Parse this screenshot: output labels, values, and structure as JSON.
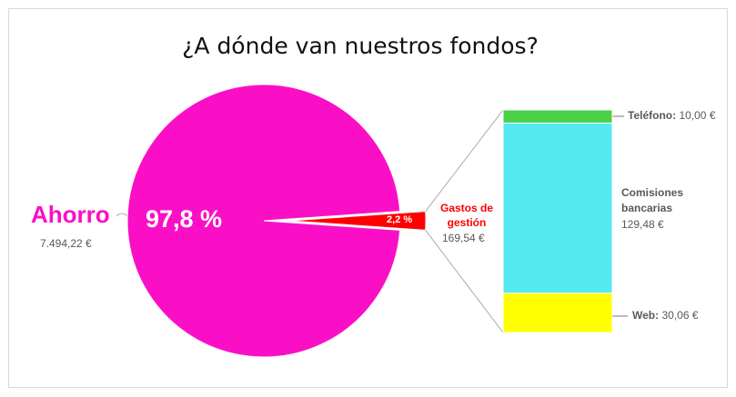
{
  "chart_data": {
    "type": "pie",
    "title": "¿A dónde van nuestros fondos?",
    "categories": [
      "Ahorro",
      "Gastos de gestión"
    ],
    "values": [
      97.8,
      2.2
    ],
    "value_labels": [
      "97,8 %",
      "2,2 %"
    ],
    "amounts": [
      7494.22,
      169.54
    ],
    "amount_labels": [
      "7.494,22 €",
      "169,54 €"
    ],
    "colors": [
      "#fa0fc6",
      "#ff0000"
    ],
    "breakdown": {
      "type": "bar",
      "categories": [
        "Web",
        "Comisiones bancarias",
        "Teléfono"
      ],
      "values": [
        30.06,
        129.48,
        10.0
      ],
      "value_labels": [
        "30,06 €",
        "129,48 €",
        "10,00 €"
      ],
      "colors": [
        "#ffff00",
        "#55e9f1",
        "#4bd048"
      ]
    }
  }
}
